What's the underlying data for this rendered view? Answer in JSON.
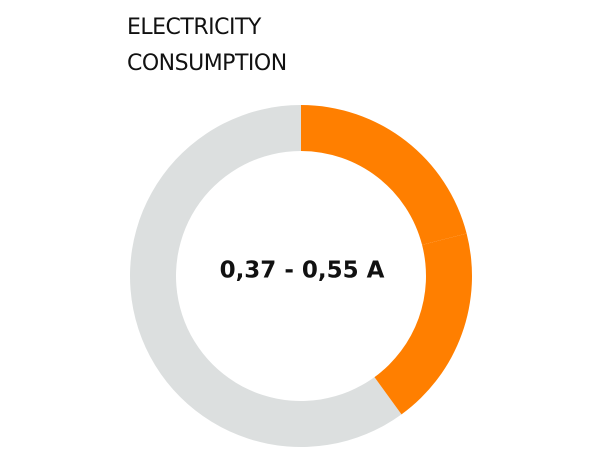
{
  "chart_data": {
    "type": "donut",
    "title": "ELECTRICITY CONSUMPTION",
    "center_label": "0,37 - 0,55 A",
    "values": [
      21,
      19,
      60
    ],
    "colors": [
      "#ff7f00",
      "#ff7f00",
      "#dcdfdf"
    ]
  }
}
